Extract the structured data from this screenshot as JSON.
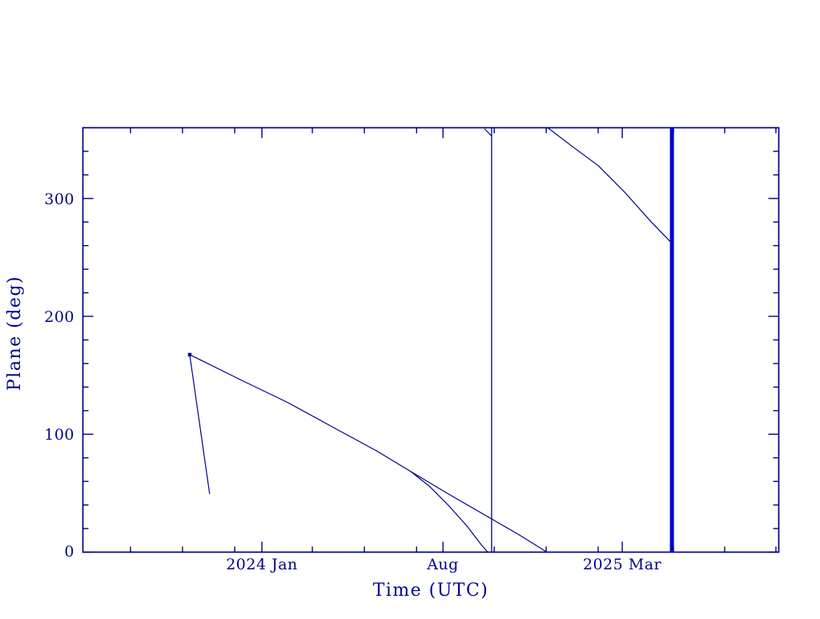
{
  "figure": {
    "background": "#ffffff",
    "line_color": "#00008b",
    "thick_marker_color": "#0000cd"
  },
  "axes": {
    "x_title": "Time (UTC)",
    "y_title": "Plane (deg)",
    "x_major_ticks": [
      {
        "t_months": 6.92,
        "label": "2024 Jan"
      },
      {
        "t_months": 13.92,
        "label": "Aug"
      },
      {
        "t_months": 20.85,
        "label": "2025 Mar"
      }
    ],
    "x_minor_ticks_months": [
      1.84,
      3.85,
      5.87,
      8.87,
      10.88,
      12.9,
      15.9,
      17.91,
      19.92,
      22.83,
      24.81,
      26.79
    ],
    "y_major_ticks": [
      {
        "deg": 0,
        "label": "0"
      },
      {
        "deg": 100,
        "label": "100"
      },
      {
        "deg": 200,
        "label": "200"
      },
      {
        "deg": 300,
        "label": "300"
      }
    ],
    "y_minor_ticks_deg": [
      20,
      40,
      60,
      80,
      120,
      140,
      160,
      180,
      220,
      240,
      260,
      280,
      320,
      340
    ]
  },
  "chart_data": {
    "type": "line",
    "title": "",
    "xlabel": "Time (UTC)",
    "ylabel": "Plane (deg)",
    "x_unit": "months from left axis edge (axis spans ~2023 Jun to ~2025 Sep)",
    "xlim_months": [
      0,
      26.9
    ],
    "ylim": [
      0,
      360
    ],
    "grid": false,
    "legend": "none",
    "series": [
      {
        "name": "plane-track-main-descent",
        "points": [
          [
            4.13,
            167.5
          ],
          [
            6.08,
            146.4
          ],
          [
            7.94,
            126.7
          ],
          [
            9.8,
            104.3
          ],
          [
            11.35,
            85.9
          ],
          [
            12.68,
            68.3
          ],
          [
            14.13,
            49.3
          ],
          [
            15.8,
            28.2
          ],
          [
            16.92,
            13.9
          ],
          [
            17.94,
            0.0
          ]
        ]
      },
      {
        "name": "plane-track-lower-branch",
        "points": [
          [
            12.68,
            68.3
          ],
          [
            13.42,
            55.4
          ],
          [
            14.13,
            39.7
          ],
          [
            14.85,
            22.1
          ],
          [
            15.37,
            7.1
          ],
          [
            15.65,
            0.0
          ]
        ]
      },
      {
        "name": "plane-track-steep-drop",
        "points": [
          [
            4.13,
            167.5
          ],
          [
            4.9,
            49.3
          ]
        ]
      },
      {
        "name": "plane-track-wrapped-continuation",
        "points": [
          [
            17.97,
            360.0
          ],
          [
            18.87,
            344.9
          ],
          [
            19.92,
            327.9
          ],
          [
            20.94,
            305.4
          ],
          [
            21.96,
            280.3
          ],
          [
            22.77,
            262.0
          ]
        ]
      },
      {
        "name": "plane-track-wrap-stub",
        "points": [
          [
            15.53,
            359.0
          ],
          [
            15.8,
            353.0
          ]
        ]
      }
    ],
    "vertical_markers": [
      {
        "t_months": 15.8,
        "style": "thin"
      },
      {
        "t_months": 22.77,
        "style": "thick"
      }
    ],
    "point_markers": [
      {
        "t_months": 4.13,
        "deg": 167.5
      }
    ]
  }
}
